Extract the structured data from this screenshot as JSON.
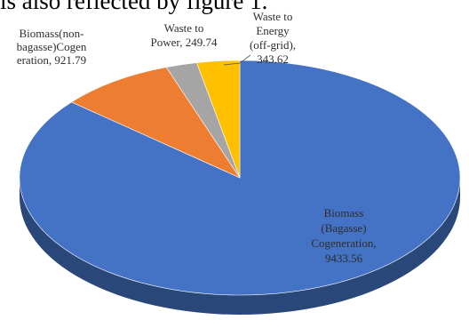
{
  "page": {
    "top_text": "is also reflected by figure 1."
  },
  "colors": {
    "blue": "#4472C4",
    "orange": "#ED7D31",
    "gray": "#A5A5A5",
    "yellow": "#FFC000",
    "label_dark": "#2E2E2E",
    "label_light": "#FFFFFF"
  },
  "chart_data": {
    "type": "pie",
    "title": "",
    "slices": [
      {
        "label_lines": [
          "Biomass",
          "(Bagasse)",
          "Cogeneration,",
          "9433.56"
        ],
        "value": 9433.56
      },
      {
        "label_lines": [
          "Biomass(non-",
          "bagasse)Cogen",
          "eration, 921.79"
        ],
        "value": 921.79
      },
      {
        "label_lines": [
          "Waste to",
          "Power, 249.74"
        ],
        "value": 249.74
      },
      {
        "label_lines": [
          "Waste to",
          "Energy",
          "(off-grid),",
          "343.62"
        ],
        "value": 343.62
      }
    ]
  }
}
